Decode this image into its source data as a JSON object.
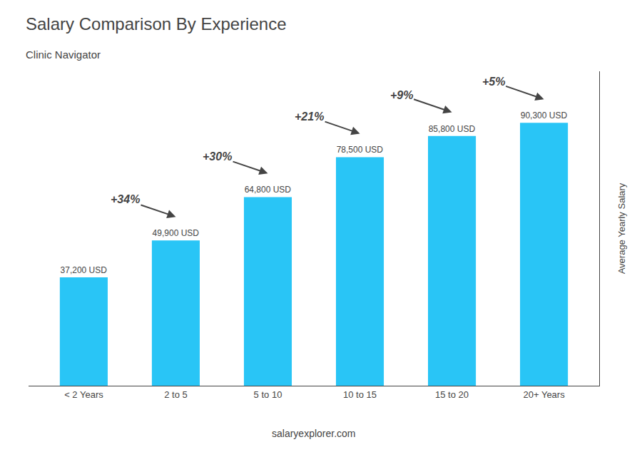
{
  "chart_data": {
    "type": "bar",
    "title": "Salary Comparison By Experience",
    "subtitle": "Clinic Navigator",
    "categories": [
      "< 2 Years",
      "2 to 5",
      "5 to 10",
      "10 to 15",
      "15 to 20",
      "20+ Years"
    ],
    "values": [
      37200,
      49900,
      64800,
      78500,
      85800,
      90300
    ],
    "value_labels": [
      "37,200 USD",
      "49,900 USD",
      "64,800 USD",
      "78,500 USD",
      "85,800 USD",
      "90,300 USD"
    ],
    "data_labels": true,
    "color": "#29c5f6",
    "ylabel": "Average Yearly Salary",
    "ylim": [
      0,
      108000
    ],
    "tick_labels": "x",
    "grid": false,
    "annotations": [
      "+34%",
      "+30%",
      "+21%",
      "+9%",
      "+5%"
    ],
    "footer": "salaryexplorer.com"
  }
}
